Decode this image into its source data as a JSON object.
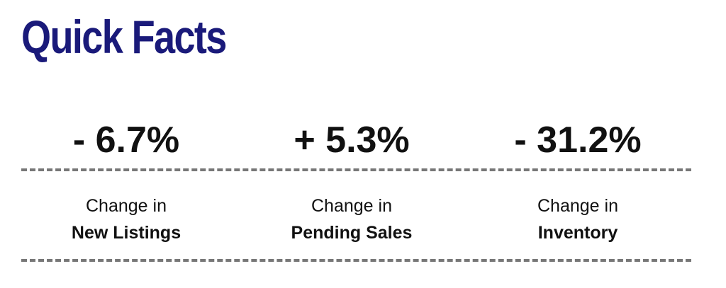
{
  "title": "Quick Facts",
  "facts": [
    {
      "value": "- 6.7%",
      "line1": "Change in",
      "line2": "New Listings"
    },
    {
      "value": "+ 5.3%",
      "line1": "Change in",
      "line2": "Pending Sales"
    },
    {
      "value": "- 31.2%",
      "line1": "Change in",
      "line2": "Inventory"
    }
  ]
}
